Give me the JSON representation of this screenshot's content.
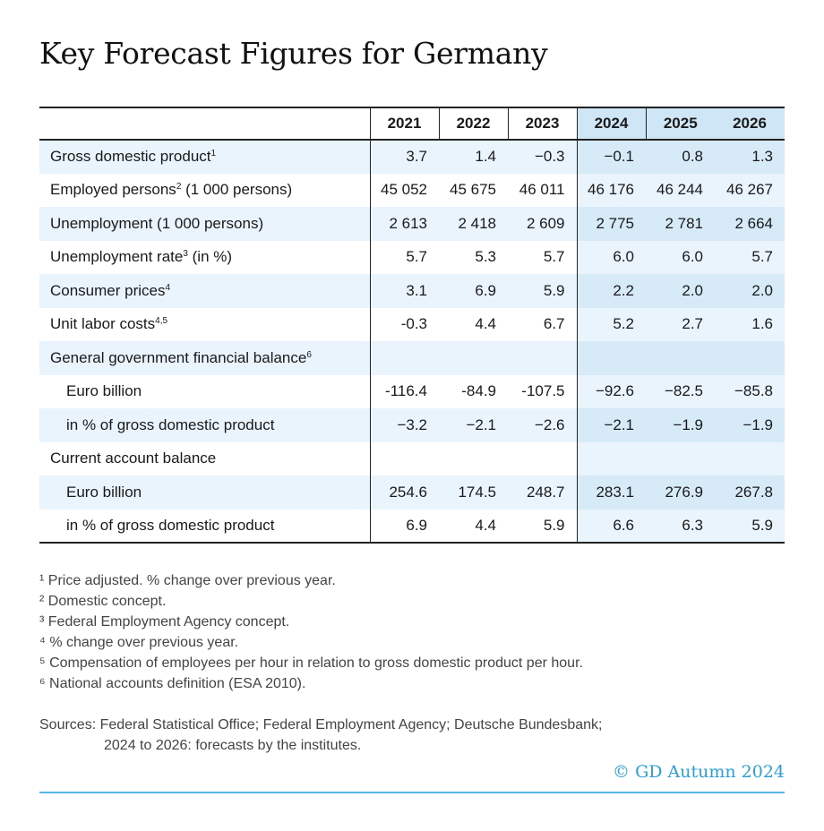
{
  "title": "Key Forecast Figures for Germany",
  "chart_data": {
    "type": "table",
    "title": "Key Forecast Figures for Germany",
    "columns": [
      "2021",
      "2022",
      "2023",
      "2024",
      "2025",
      "2026"
    ],
    "forecast_columns": [
      "2024",
      "2025",
      "2026"
    ],
    "rows": [
      {
        "label": "Gross domestic product",
        "sup": "1",
        "sub": false,
        "values": [
          "3.7",
          "1.4",
          "−0.3",
          "−0.1",
          "0.8",
          "1.3"
        ]
      },
      {
        "label": "Employed persons",
        "sup": "2",
        "suffix": " (1 000 persons)",
        "sub": false,
        "values": [
          "45 052",
          "45 675",
          "46 011",
          "46 176",
          "46 244",
          "46 267"
        ]
      },
      {
        "label": "Unemployment (1 000 persons)",
        "sub": false,
        "values": [
          "2 613",
          "2 418",
          "2 609",
          "2 775",
          "2 781",
          "2 664"
        ]
      },
      {
        "label": "Unemployment rate",
        "sup": "3",
        "suffix": " (in %)",
        "sub": false,
        "values": [
          "5.7",
          "5.3",
          "5.7",
          "6.0",
          "6.0",
          "5.7"
        ]
      },
      {
        "label": "Consumer prices",
        "sup": "4",
        "sub": false,
        "values": [
          "3.1",
          "6.9",
          "5.9",
          "2.2",
          "2.0",
          "2.0"
        ]
      },
      {
        "label": "Unit labor costs",
        "sup": "4,5",
        "sub": false,
        "values": [
          "-0.3",
          "4.4",
          "6.7",
          "5.2",
          "2.7",
          "1.6"
        ]
      },
      {
        "label": "General government financial balance",
        "sup": "6",
        "sub": false,
        "values": [
          "",
          "",
          "",
          "",
          "",
          ""
        ]
      },
      {
        "label": "Euro billion",
        "sub": true,
        "values": [
          "-116.4",
          "-84.9",
          "-107.5",
          "−92.6",
          "−82.5",
          "−85.8"
        ]
      },
      {
        "label": "in % of gross domestic product",
        "sub": true,
        "values": [
          "−3.2",
          "−2.1",
          "−2.6",
          "−2.1",
          "−1.9",
          "−1.9"
        ]
      },
      {
        "label": "Current account balance",
        "sub": false,
        "values": [
          "",
          "",
          "",
          "",
          "",
          ""
        ]
      },
      {
        "label": "Euro billion",
        "sub": true,
        "values": [
          "254.6",
          "174.5",
          "248.7",
          "283.1",
          "276.9",
          "267.8"
        ]
      },
      {
        "label": "in % of gross domestic product",
        "sub": true,
        "values": [
          "6.9",
          "4.4",
          "5.9",
          "6.6",
          "6.3",
          "5.9"
        ]
      }
    ]
  },
  "footnotes": [
    "¹ Price adjusted. % change over previous year.",
    "² Domestic concept.",
    "³ Federal Employment Agency concept.",
    "⁴ % change over previous year.",
    "⁵ Compensation of employees per hour in relation to gross domestic product per hour.",
    "⁶ National accounts definition (ESA 2010)."
  ],
  "sources": {
    "line1": "Sources: Federal Statistical Office; Federal Employment Agency; Deutsche Bundesbank;",
    "line2": "2024 to 2026: forecasts by the institutes."
  },
  "copyright": "© GD Autumn 2024",
  "colors": {
    "forecast_header": "#cfe6f6",
    "row_band": "#e9f4fc",
    "forecast_band": "#d6eaf8",
    "accent": "#2a9fd8",
    "rule": "#5ab4e5"
  }
}
